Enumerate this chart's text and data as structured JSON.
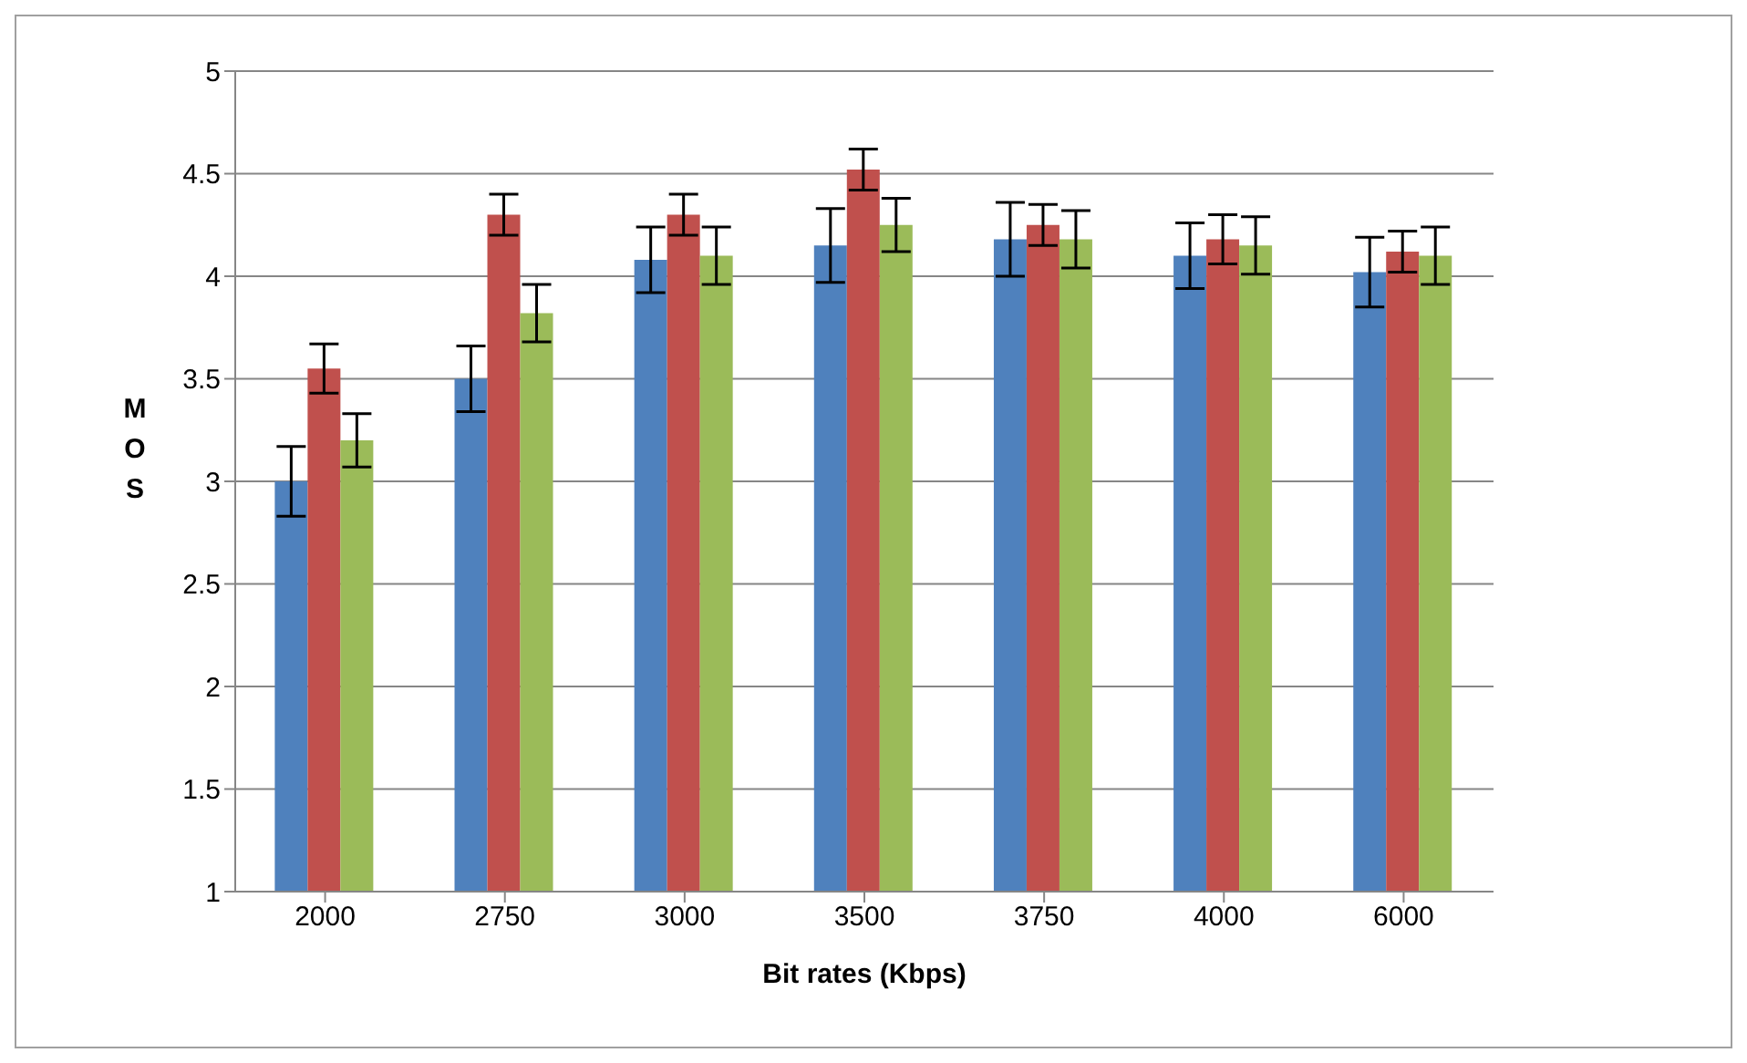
{
  "chart_data": {
    "type": "bar",
    "xlabel": "Bit rates (Kbps)",
    "ylabel": "MOS",
    "categories": [
      "2000",
      "2750",
      "3000",
      "3500",
      "3750",
      "4000",
      "6000"
    ],
    "series": [
      {
        "color": "#4f81bd",
        "values": [
          3.0,
          3.5,
          4.08,
          4.15,
          4.18,
          4.1,
          4.02
        ],
        "errors": [
          0.17,
          0.16,
          0.16,
          0.18,
          0.18,
          0.16,
          0.17
        ]
      },
      {
        "color": "#c0504d",
        "values": [
          3.55,
          4.3,
          4.3,
          4.52,
          4.25,
          4.18,
          4.12
        ],
        "errors": [
          0.12,
          0.1,
          0.1,
          0.1,
          0.1,
          0.12,
          0.1
        ]
      },
      {
        "color": "#9bbb59",
        "values": [
          3.2,
          3.82,
          4.1,
          4.25,
          4.18,
          4.15,
          4.1
        ],
        "errors": [
          0.13,
          0.14,
          0.14,
          0.13,
          0.14,
          0.14,
          0.14
        ]
      }
    ],
    "ylim": [
      1,
      5
    ],
    "yticks": [
      1,
      1.5,
      2,
      2.5,
      3,
      3.5,
      4,
      4.5,
      5
    ],
    "grid": "y"
  }
}
